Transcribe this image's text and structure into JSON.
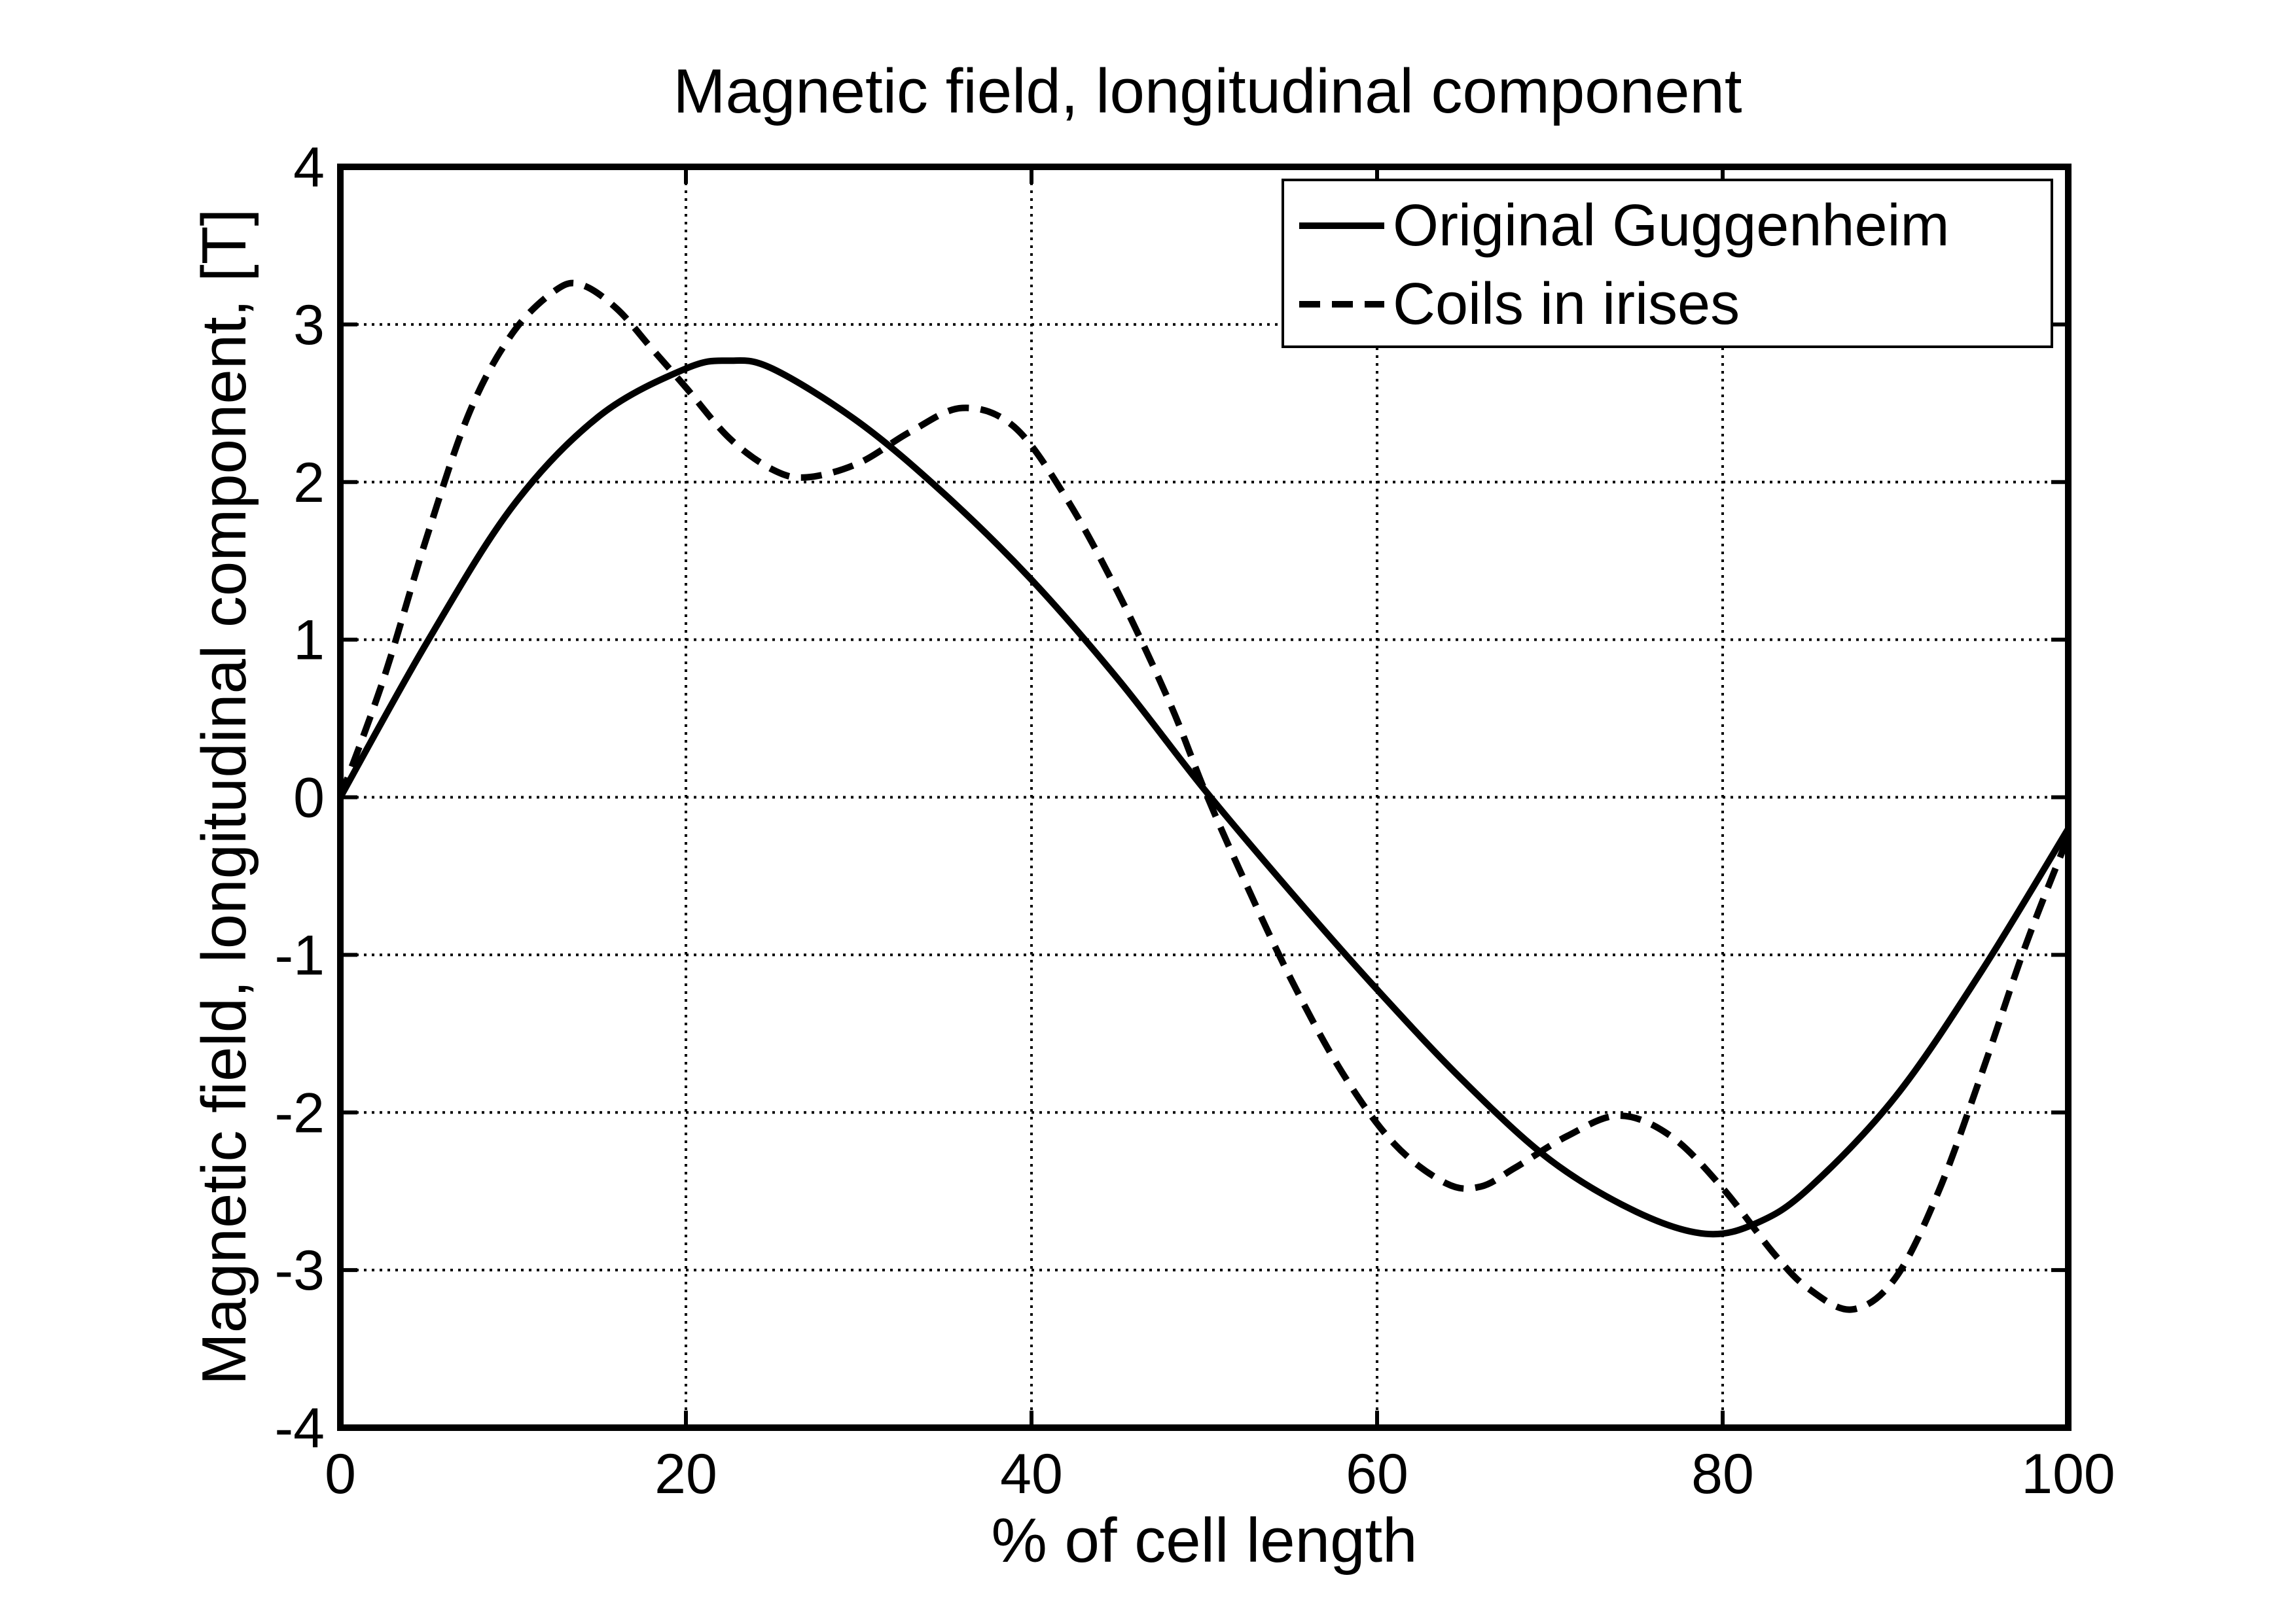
{
  "chart_data": {
    "type": "line",
    "title": "Magnetic field, longitudinal component",
    "xlabel": "% of cell length",
    "ylabel": "Magnetic field, longitudinal component, [T]",
    "xlim": [
      0,
      100
    ],
    "ylim": [
      -4,
      4
    ],
    "xticks": [
      0,
      20,
      40,
      60,
      80,
      100
    ],
    "xtick_labels": [
      "0",
      "20",
      "40",
      "60",
      "80",
      "100"
    ],
    "yticks": [
      -4,
      -3,
      -2,
      -1,
      0,
      1,
      2,
      3,
      4
    ],
    "ytick_labels": [
      "-4",
      "-3",
      "-2",
      "-1",
      "0",
      "1",
      "2",
      "3",
      "4"
    ],
    "grid": true,
    "legend_position": "top-right",
    "series": [
      {
        "name": "Original Guggenheim",
        "style": "solid",
        "color": "#000000",
        "x": [
          0,
          5,
          10,
          15,
          20,
          22.5,
          25,
          30,
          35,
          40,
          45,
          50,
          55,
          60,
          65,
          70,
          75,
          79,
          82,
          85,
          90,
          95,
          100
        ],
        "y": [
          0,
          0.98,
          1.85,
          2.42,
          2.72,
          2.77,
          2.72,
          2.38,
          1.92,
          1.38,
          0.75,
          0.05,
          -0.6,
          -1.22,
          -1.8,
          -2.3,
          -2.63,
          -2.77,
          -2.7,
          -2.48,
          -1.9,
          -1.1,
          -0.2
        ]
      },
      {
        "name": "Coils in irises",
        "style": "dashed",
        "color": "#000000",
        "x": [
          0,
          2.5,
          5,
          7.5,
          10,
          12.5,
          14,
          16,
          18,
          20,
          22.5,
          25,
          27,
          30,
          33,
          36,
          39,
          42,
          45,
          48,
          50,
          52,
          55,
          58,
          61,
          64,
          66,
          68,
          71,
          74,
          77,
          80,
          83,
          85,
          87.5,
          90,
          92.5,
          95,
          97.5,
          100
        ],
        "y": [
          0,
          0.75,
          1.65,
          2.45,
          2.95,
          3.22,
          3.25,
          3.1,
          2.85,
          2.6,
          2.28,
          2.08,
          2.03,
          2.12,
          2.32,
          2.47,
          2.35,
          1.9,
          1.3,
          0.6,
          0.05,
          -0.45,
          -1.15,
          -1.75,
          -2.2,
          -2.45,
          -2.47,
          -2.35,
          -2.15,
          -2.02,
          -2.15,
          -2.48,
          -2.9,
          -3.12,
          -3.25,
          -3.05,
          -2.5,
          -1.75,
          -0.95,
          -0.25
        ]
      }
    ]
  }
}
